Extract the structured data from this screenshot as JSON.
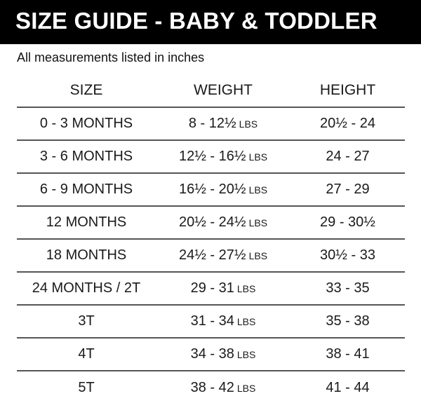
{
  "title": "SIZE GUIDE - BABY & TODDLER",
  "note": "All measurements listed in inches",
  "columns": [
    "SIZE",
    "WEIGHT",
    "HEIGHT"
  ],
  "weight_unit": "LBS",
  "rows": [
    {
      "size": "0 - 3 MONTHS",
      "weight": "8 - 12½",
      "height": "20½ - 24"
    },
    {
      "size": "3 - 6 MONTHS",
      "weight": "12½ - 16½",
      "height": "24 - 27"
    },
    {
      "size": "6 - 9 MONTHS",
      "weight": "16½ - 20½",
      "height": "27 - 29"
    },
    {
      "size": "12 MONTHS",
      "weight": "20½ - 24½",
      "height": "29 - 30½"
    },
    {
      "size": "18 MONTHS",
      "weight": "24½ - 27½",
      "height": "30½ - 33"
    },
    {
      "size": "24 MONTHS / 2T",
      "weight": "29 - 31",
      "height": "33 - 35"
    },
    {
      "size": "3T",
      "weight": "31 - 34",
      "height": "35 - 38"
    },
    {
      "size": "4T",
      "weight": "34 - 38",
      "height": "38 - 41"
    },
    {
      "size": "5T",
      "weight": "38 - 42",
      "height": "41 - 44"
    }
  ]
}
